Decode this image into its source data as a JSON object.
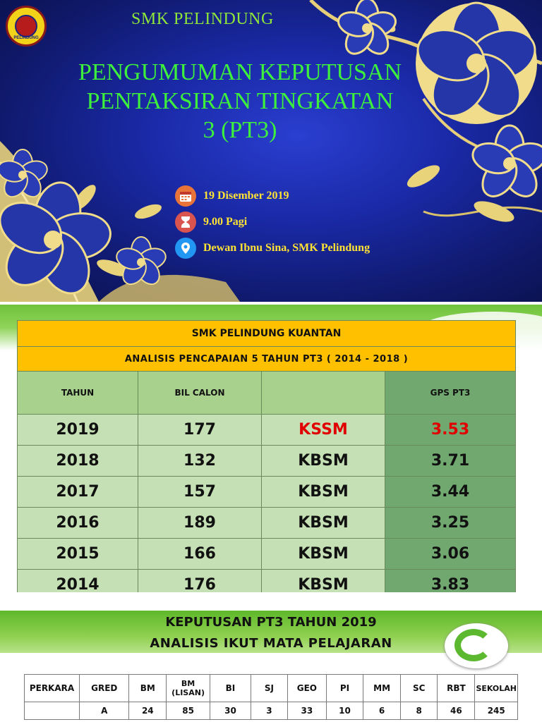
{
  "banner": {
    "school": "SMK PELINDUNG",
    "logo_text": "PELINDUNG",
    "headline_lines": [
      "PENGUMUMAN KEPUTUSAN",
      "PENTAKSIRAN TINGKATAN",
      "3 (PT3)"
    ],
    "date": "19 Disember 2019",
    "time": "9.00 Pagi",
    "venue": "Dewan Ibnu Sina, SMK Pelindung",
    "icons": [
      "calendar-icon",
      "hourglass-icon",
      "location-pin-icon"
    ],
    "colors": {
      "headline": "#3cf03c",
      "info_text": "#ffe234",
      "background": "#1a2aa8"
    }
  },
  "analysis_table": {
    "title": "SMK PELINDUNG KUANTAN",
    "subtitle": "ANALISIS PENCAPAIAN  5  TAHUN PT3  ( 2014 - 2018 )",
    "columns": [
      "TAHUN",
      "BIL CALON",
      "",
      "GPS PT3"
    ],
    "rows": [
      {
        "year": "2019",
        "candidates": "177",
        "curriculum": "KSSM",
        "gps": "3.53",
        "highlight": true
      },
      {
        "year": "2018",
        "candidates": "132",
        "curriculum": "KBSM",
        "gps": "3.71"
      },
      {
        "year": "2017",
        "candidates": "157",
        "curriculum": "KBSM",
        "gps": "3.44"
      },
      {
        "year": "2016",
        "candidates": "189",
        "curriculum": "KBSM",
        "gps": "3.25"
      },
      {
        "year": "2015",
        "candidates": "166",
        "curriculum": "KBSM",
        "gps": "3.06"
      },
      {
        "year": "2014",
        "candidates": "176",
        "curriculum": "KBSM",
        "gps": "3.83"
      }
    ],
    "colors": {
      "header": "#ffc000",
      "row": "#c5e0b4",
      "gps": "#70a870",
      "highlight": "#e00000"
    }
  },
  "subject_slide": {
    "title_line1": "KEPUTUSAN PT3 TAHUN 2019",
    "title_line2": "ANALISIS IKUT MATA PELAJARAN",
    "headers": [
      "PERKARA",
      "GRED",
      "BM",
      "BM (LISAN)",
      "BI",
      "SJ",
      "GEO",
      "PI",
      "MM",
      "SC",
      "RBT",
      "SEKOLAH"
    ],
    "rows": [
      [
        "",
        "A",
        "24",
        "85",
        "30",
        "3",
        "33",
        "10",
        "6",
        "8",
        "46",
        "245"
      ]
    ]
  }
}
